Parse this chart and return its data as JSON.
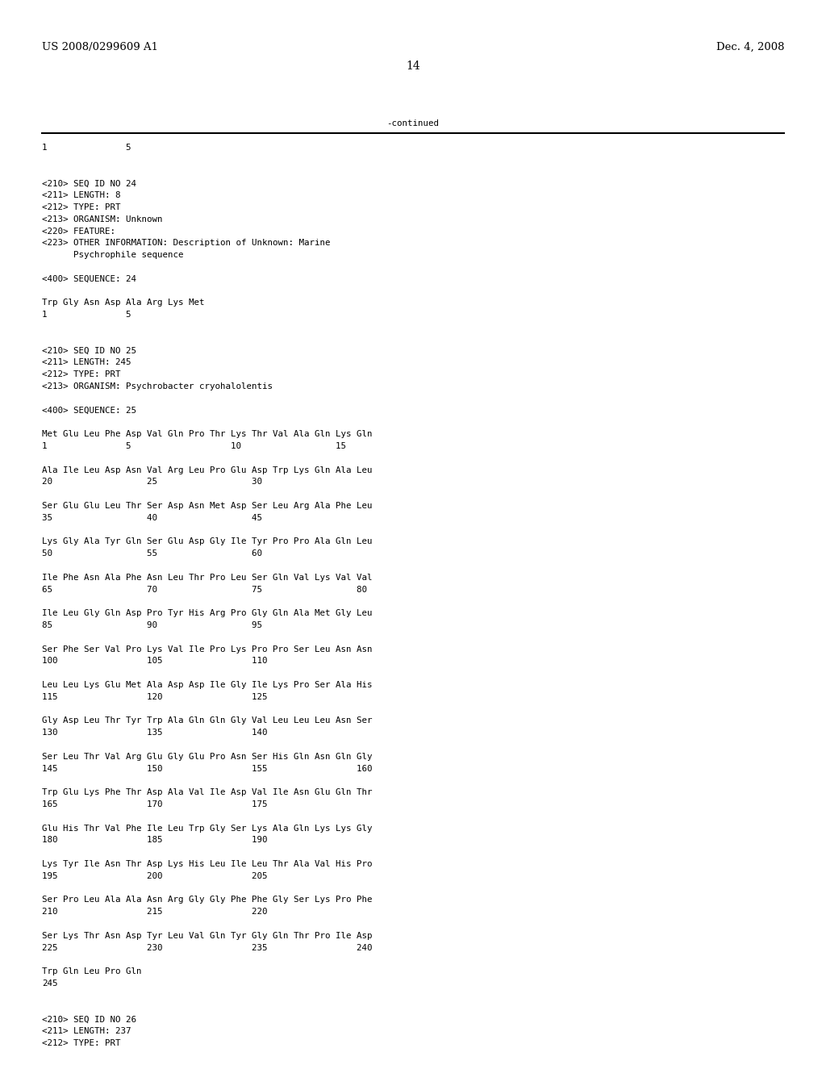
{
  "header_left": "US 2008/0299609 A1",
  "header_right": "Dec. 4, 2008",
  "page_number": "14",
  "continued_label": "-continued",
  "background_color": "#ffffff",
  "text_color": "#000000",
  "font_size": 7.8,
  "header_font_size": 9.5,
  "page_num_font_size": 10,
  "content_lines": [
    "1               5",
    "",
    "",
    "<210> SEQ ID NO 24",
    "<211> LENGTH: 8",
    "<212> TYPE: PRT",
    "<213> ORGANISM: Unknown",
    "<220> FEATURE:",
    "<223> OTHER INFORMATION: Description of Unknown: Marine",
    "      Psychrophile sequence",
    "",
    "<400> SEQUENCE: 24",
    "",
    "Trp Gly Asn Asp Ala Arg Lys Met",
    "1               5",
    "",
    "",
    "<210> SEQ ID NO 25",
    "<211> LENGTH: 245",
    "<212> TYPE: PRT",
    "<213> ORGANISM: Psychrobacter cryohalolentis",
    "",
    "<400> SEQUENCE: 25",
    "",
    "Met Glu Leu Phe Asp Val Gln Pro Thr Lys Thr Val Ala Gln Lys Gln",
    "1               5                   10                  15",
    "",
    "Ala Ile Leu Asp Asn Val Arg Leu Pro Glu Asp Trp Lys Gln Ala Leu",
    "20                  25                  30",
    "",
    "Ser Glu Glu Leu Thr Ser Asp Asn Met Asp Ser Leu Arg Ala Phe Leu",
    "35                  40                  45",
    "",
    "Lys Gly Ala Tyr Gln Ser Glu Asp Gly Ile Tyr Pro Pro Ala Gln Leu",
    "50                  55                  60",
    "",
    "Ile Phe Asn Ala Phe Asn Leu Thr Pro Leu Ser Gln Val Lys Val Val",
    "65                  70                  75                  80",
    "",
    "Ile Leu Gly Gln Asp Pro Tyr His Arg Pro Gly Gln Ala Met Gly Leu",
    "85                  90                  95",
    "",
    "Ser Phe Ser Val Pro Lys Val Ile Pro Lys Pro Pro Ser Leu Asn Asn",
    "100                 105                 110",
    "",
    "Leu Leu Lys Glu Met Ala Asp Asp Ile Gly Ile Lys Pro Ser Ala His",
    "115                 120                 125",
    "",
    "Gly Asp Leu Thr Tyr Trp Ala Gln Gln Gly Val Leu Leu Leu Asn Ser",
    "130                 135                 140",
    "",
    "Ser Leu Thr Val Arg Glu Gly Glu Pro Asn Ser His Gln Asn Gln Gly",
    "145                 150                 155                 160",
    "",
    "Trp Glu Lys Phe Thr Asp Ala Val Ile Asp Val Ile Asn Glu Gln Thr",
    "165                 170                 175",
    "",
    "Glu His Thr Val Phe Ile Leu Trp Gly Ser Lys Ala Gln Lys Lys Gly",
    "180                 185                 190",
    "",
    "Lys Tyr Ile Asn Thr Asp Lys His Leu Ile Leu Thr Ala Val His Pro",
    "195                 200                 205",
    "",
    "Ser Pro Leu Ala Ala Asn Arg Gly Gly Phe Phe Gly Ser Lys Pro Phe",
    "210                 215                 220",
    "",
    "Ser Lys Thr Asn Asp Tyr Leu Val Gln Tyr Gly Gln Thr Pro Ile Asp",
    "225                 230                 235                 240",
    "",
    "Trp Gln Leu Pro Gln",
    "245",
    "",
    "",
    "<210> SEQ ID NO 26",
    "<211> LENGTH: 237",
    "<212> TYPE: PRT"
  ]
}
